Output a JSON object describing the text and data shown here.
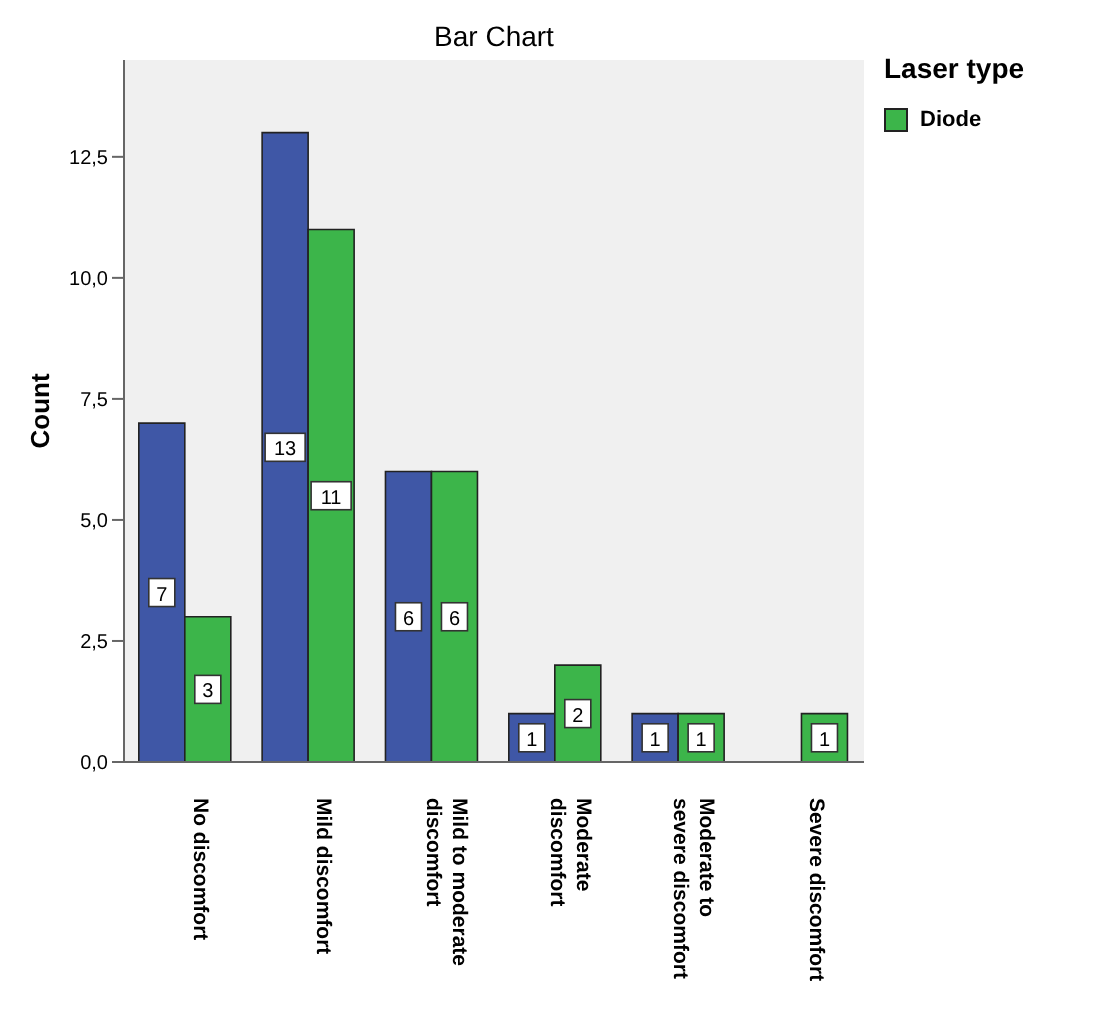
{
  "chart_data": {
    "type": "bar",
    "title": "Bar Chart",
    "ylabel": "Count",
    "legend_title": "Laser type",
    "categories": [
      "No discomfort",
      "Mild discomfort",
      "Mild to moderate discomfort",
      "Moderate discomfort",
      "Moderate to severe discomfort",
      "Severe discomfort"
    ],
    "series": [
      {
        "color": "#3f57a6",
        "values": [
          7,
          13,
          6,
          1,
          1,
          null
        ]
      },
      {
        "name": "Diode",
        "color": "#3cb54a",
        "values": [
          3,
          11,
          6,
          2,
          1,
          1
        ]
      }
    ],
    "ylim": [
      0,
      14.5
    ],
    "yticks": [
      {
        "value": 0,
        "label": "0,0"
      },
      {
        "value": 2.5,
        "label": "2,5"
      },
      {
        "value": 5,
        "label": "5,0"
      },
      {
        "value": 7.5,
        "label": "7,5"
      },
      {
        "value": 10,
        "label": "10,0"
      },
      {
        "value": 12.5,
        "label": "12,5"
      }
    ],
    "data_labels": true,
    "legend": "top right",
    "grid": false
  }
}
